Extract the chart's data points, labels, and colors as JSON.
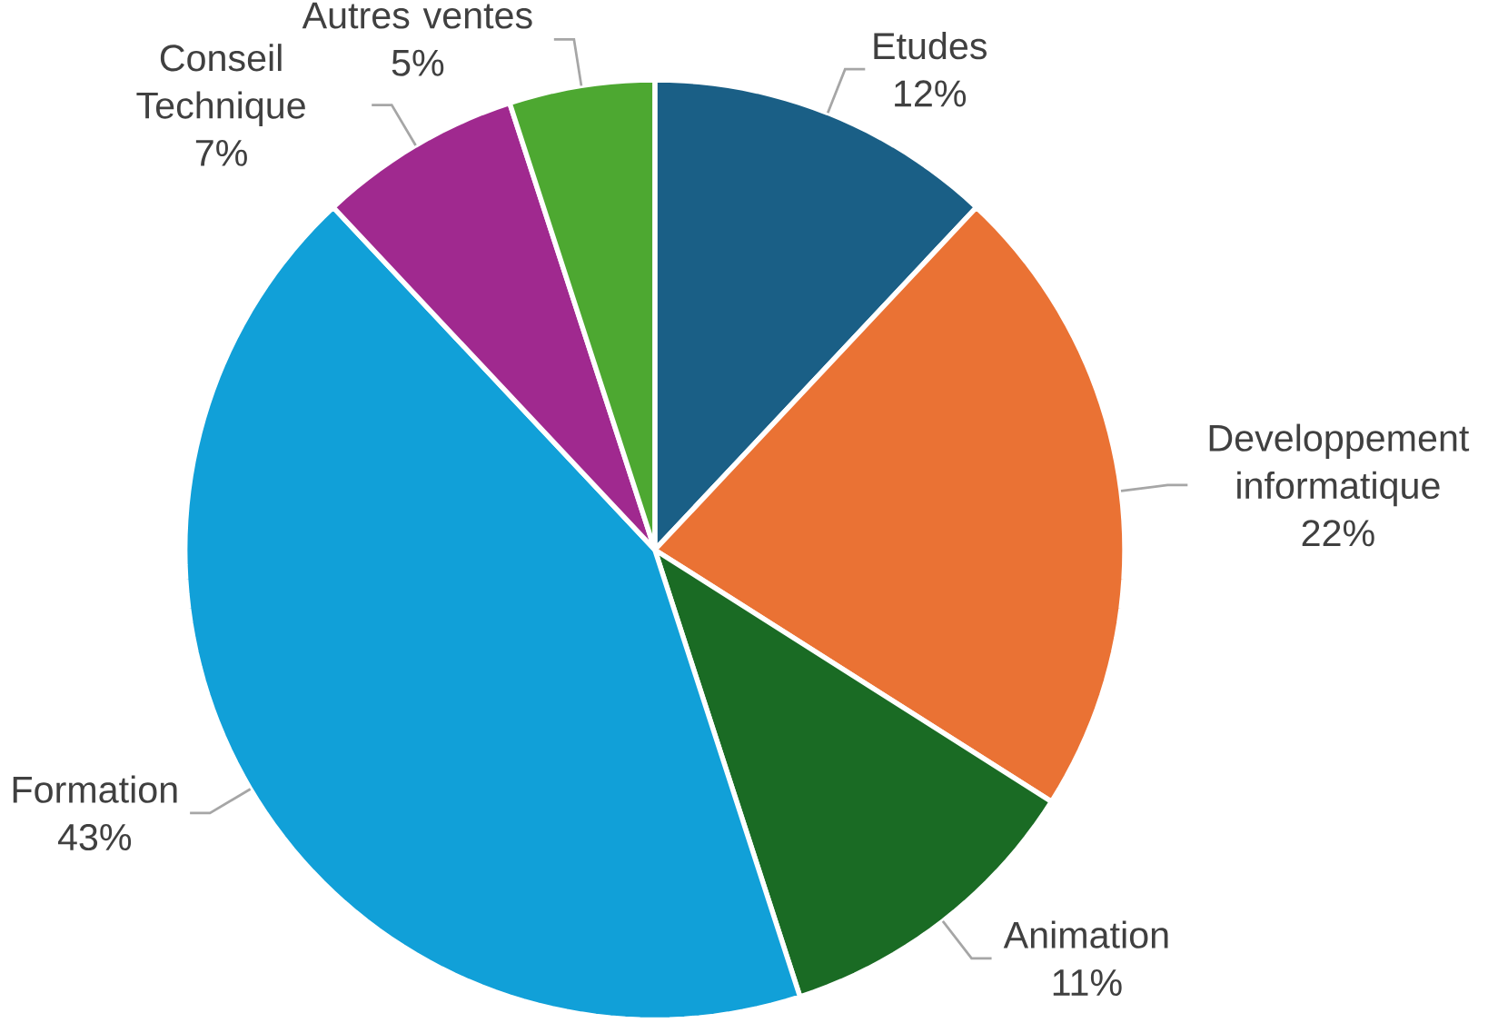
{
  "chart_data": {
    "type": "pie",
    "categories": [
      "Etudes",
      "Developpement informatique",
      "Animation",
      "Formation",
      "Conseil Technique",
      "Autres ventes"
    ],
    "values": [
      12,
      22,
      11,
      43,
      7,
      5
    ],
    "value_labels": [
      "12%",
      "22%",
      "11%",
      "43%",
      "7%",
      "5%"
    ],
    "colors": [
      "#1a5f86",
      "#ea7234",
      "#1a6b24",
      "#11a0d8",
      "#a0298f",
      "#4da831"
    ]
  }
}
